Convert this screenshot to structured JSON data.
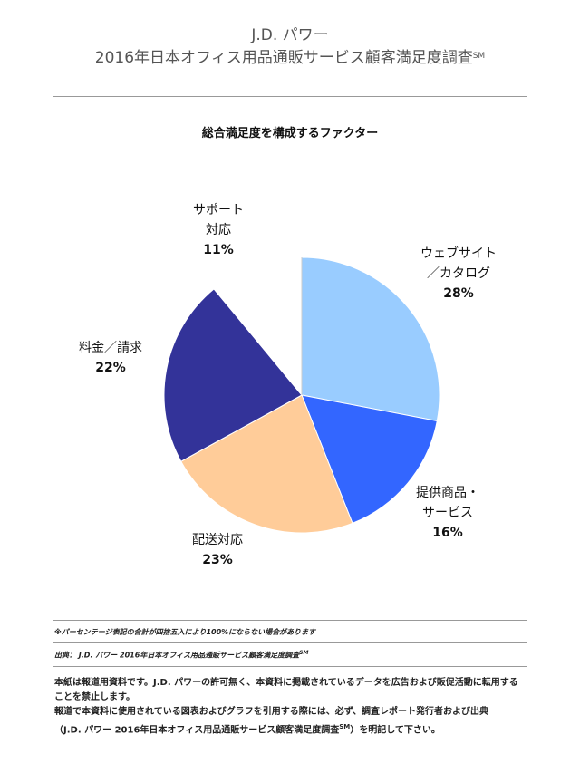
{
  "header": {
    "line1": "J.D. パワー",
    "line2": "2016年日本オフィス用品通販サービス顧客満足度調査",
    "line2_mark": "SM"
  },
  "chart_data": {
    "type": "pie",
    "title": "総合満足度を構成するファクター",
    "start_angle_deg": 0,
    "direction": "clockwise",
    "slices": [
      {
        "label": "ウェブサイト／カタログ",
        "label_lines": [
          "ウェブサイト",
          "／カタログ"
        ],
        "value": 28,
        "pct": "28%",
        "color": "#99ccff"
      },
      {
        "label": "提供商品・サービス",
        "label_lines": [
          "提供商品・",
          "サービス"
        ],
        "value": 16,
        "pct": "16%",
        "color": "#3366ff"
      },
      {
        "label": "配送対応",
        "label_lines": [
          "配送対応"
        ],
        "value": 23,
        "pct": "23%",
        "color": "#ffcc99"
      },
      {
        "label": "料金／請求",
        "label_lines": [
          "料金／請求"
        ],
        "value": 22,
        "pct": "22%",
        "color": "#333399"
      },
      {
        "label": "サポート対応",
        "label_lines": [
          "サポート",
          "対応"
        ],
        "value": 11,
        "pct": "11%",
        "color": "#ffffff"
      }
    ]
  },
  "notes": {
    "rounding": "※パーセンテージ表記の合計が四捨五入により100%にならない場合があります",
    "source": "出典： J.D. パワー 2016年日本オフィス用品通販サービス顧客満足度調査",
    "source_mark": "SM"
  },
  "disclaimer": {
    "line1": "本紙は報道用資料です。J.D. パワーの許可無く、本資料に掲載されているデータを広告および販促活動に転用することを禁止します。",
    "line2": "報道で本資料に使用されている図表およびグラフを引用する際には、必ず、調査レポート発行者および出典",
    "line3_a": "（J.D. パワー 2016年日本オフィス用品通販サービス顧客満足度調査",
    "line3_mark": "SM",
    "line3_b": "）を明記して下さい。"
  }
}
